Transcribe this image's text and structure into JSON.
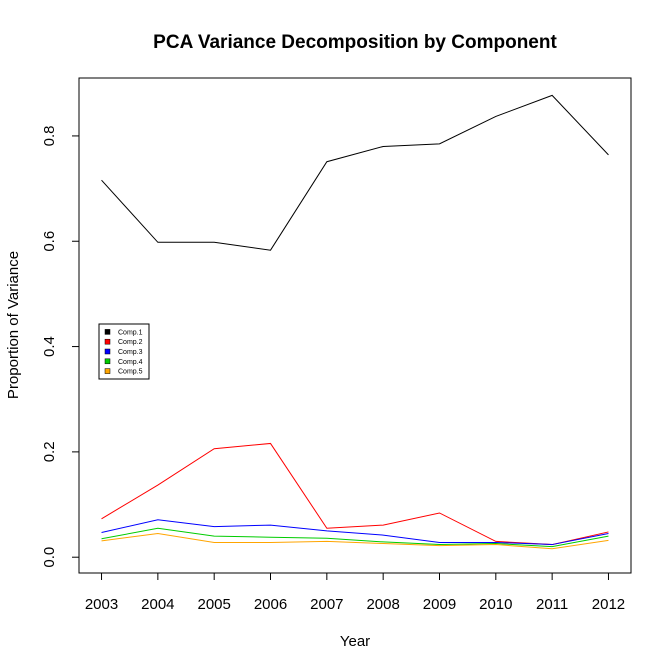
{
  "chart_data": {
    "type": "line",
    "title": "PCA Variance Decomposition by Component",
    "xlabel": "Year",
    "ylabel": "Proportion of Variance",
    "x": [
      2003,
      2004,
      2005,
      2006,
      2007,
      2008,
      2009,
      2010,
      2011,
      2012
    ],
    "x_tick_labels": [
      "2003",
      "2004",
      "2005",
      "2006",
      "2007",
      "2008",
      "2009",
      "2010",
      "2011",
      "2012"
    ],
    "y_ticks": [
      0.0,
      0.2,
      0.4,
      0.6,
      0.8
    ],
    "y_tick_labels": [
      "0.0",
      "0.2",
      "0.4",
      "0.6",
      "0.8"
    ],
    "xlim": [
      2002.6,
      2012.4
    ],
    "ylim": [
      -0.03,
      0.91
    ],
    "grid": false,
    "legend_position": "middle-left",
    "series": [
      {
        "name": "Comp.1",
        "color": "#000000",
        "values": [
          0.716,
          0.598,
          0.598,
          0.583,
          0.751,
          0.78,
          0.785,
          0.837,
          0.877,
          0.764
        ]
      },
      {
        "name": "Comp.2",
        "color": "#ff0000",
        "values": [
          0.073,
          0.137,
          0.206,
          0.216,
          0.055,
          0.061,
          0.084,
          0.03,
          0.024,
          0.048
        ]
      },
      {
        "name": "Comp.3",
        "color": "#0000ff",
        "values": [
          0.047,
          0.071,
          0.058,
          0.061,
          0.05,
          0.042,
          0.028,
          0.028,
          0.024,
          0.045
        ]
      },
      {
        "name": "Comp.4",
        "color": "#00cc00",
        "values": [
          0.035,
          0.055,
          0.04,
          0.038,
          0.036,
          0.029,
          0.024,
          0.026,
          0.02,
          0.04
        ]
      },
      {
        "name": "Comp.5",
        "color": "#ffa500",
        "values": [
          0.031,
          0.045,
          0.028,
          0.028,
          0.03,
          0.026,
          0.022,
          0.024,
          0.016,
          0.032
        ]
      }
    ]
  }
}
